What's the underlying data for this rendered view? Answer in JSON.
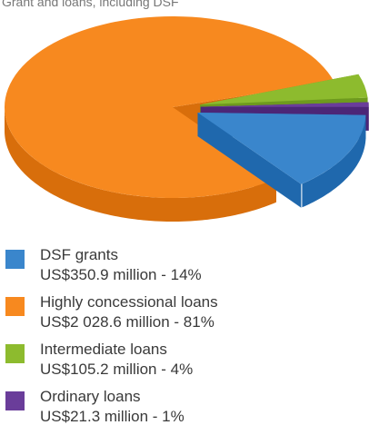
{
  "chart_data": {
    "type": "pie",
    "title": "Grant and loans, including DSF",
    "slices": [
      {
        "name": "DSF grants",
        "detail": "US$350.9 million - 14%",
        "value": 350.9,
        "percent": 14,
        "color": "#3a86cc",
        "side": "#1f68ad",
        "exploded": true
      },
      {
        "name": "Highly concessional loans",
        "detail": "US$2 028.6 million - 81%",
        "value": 2028.6,
        "percent": 81,
        "color": "#f7891f",
        "side": "#d86e0b",
        "exploded": false
      },
      {
        "name": "Intermediate loans",
        "detail": "US$105.2 million - 4%",
        "value": 105.2,
        "percent": 4,
        "color": "#8dbb2e",
        "side": "#6e9a1e",
        "exploded": true
      },
      {
        "name": "Ordinary loans",
        "detail": "US$21.3 million - 1%",
        "value": 21.3,
        "percent": 1,
        "color": "#6a3d9a",
        "side": "#4c2677",
        "exploded": true
      }
    ],
    "legend_position": "bottom"
  }
}
